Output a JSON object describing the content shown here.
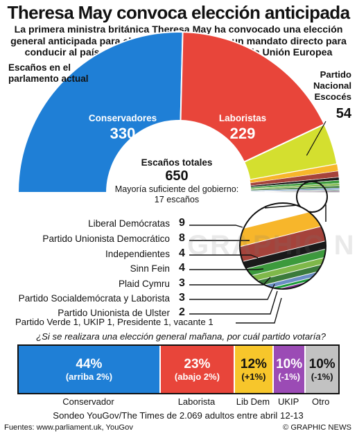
{
  "title": "Theresa May convoca elección anticipada",
  "subtitle": "La primera ministra británica Theresa May ha convocado una elección general anticipada para el 8 de junio buscando un mandato directo para conducir al país durante el Brexit, el divorcio de la Unión Europea",
  "current_label": "Escaños en el parlamento actual",
  "total": {
    "label": "Escaños totales",
    "value": "650",
    "majority": "Mayoría suficiente del gobierno: 17 escaños"
  },
  "big_parties": {
    "con": {
      "name": "Conservadores",
      "seats": "330"
    },
    "lab": {
      "name": "Laboristas",
      "seats": "229"
    },
    "snp": {
      "name": "Partido Nacional Escocés",
      "seats": "54"
    }
  },
  "small_parties": [
    {
      "name": "Liberal Demócratas",
      "seats": "9"
    },
    {
      "name": "Partido Unionista Democrático",
      "seats": "8"
    },
    {
      "name": "Independientes",
      "seats": "4"
    },
    {
      "name": "Sinn Fein",
      "seats": "4"
    },
    {
      "name": "Plaid Cymru",
      "seats": "3"
    },
    {
      "name": "Partido Socialdemócrata y Laborista",
      "seats": "3"
    },
    {
      "name": "Partido Unionista de Ulster",
      "seats": "2"
    }
  ],
  "others_line": "Partido Verde 1, UKIP 1, Presidente 1, vacante 1",
  "poll": {
    "question": "¿Si se realizara una elección general mañana, por cuál partido votaría?",
    "items": [
      {
        "name": "Conservador",
        "pct": "44%",
        "chg": "(arriba 2%)"
      },
      {
        "name": "Laborista",
        "pct": "23%",
        "chg": "(abajo 2%)"
      },
      {
        "name": "Lib Dem",
        "pct": "12%",
        "chg": "(+1%)"
      },
      {
        "name": "UKIP",
        "pct": "10%",
        "chg": "(-1%)"
      },
      {
        "name": "Otro",
        "pct": "10%",
        "chg": "(-1%)"
      }
    ]
  },
  "source": "Sondeo YouGov/The Times de 2.069 adultos entre abril 12-13",
  "credits": "Fuentes: www.parliament.uk, YouGov",
  "copyright": "© GRAPHIC NEWS",
  "watermark": "GRAPHIC NEWS",
  "chart_data": [
    {
      "type": "pie",
      "title": "Escaños en el parlamento actual",
      "total": 650,
      "categories": [
        "Conservadores",
        "Laboristas",
        "Partido Nacional Escocés",
        "Liberal Demócratas",
        "Partido Unionista Democrático",
        "Independientes",
        "Sinn Fein",
        "Plaid Cymru",
        "Partido Socialdemócrata y Laborista",
        "Partido Unionista de Ulster",
        "Partido Verde",
        "UKIP",
        "Presidente",
        "vacante"
      ],
      "values": [
        330,
        229,
        54,
        9,
        8,
        4,
        4,
        3,
        3,
        2,
        1,
        1,
        1,
        1
      ],
      "colors": [
        "#1f7fd6",
        "#e8453a",
        "#d4df2f",
        "#f7b62b",
        "#a5433b",
        "#1a1a1a",
        "#3c9a3c",
        "#7fb84a",
        "#3b7b3b",
        "#6a8ec4",
        "#1d9b3a",
        "#7a2f8a",
        "#333333",
        "#bbbbbb"
      ]
    },
    {
      "type": "bar",
      "title": "¿Si se realizara una elección general mañana, por cuál partido votaría?",
      "categories": [
        "Conservador",
        "Laborista",
        "Lib Dem",
        "UKIP",
        "Otro"
      ],
      "values": [
        44,
        23,
        12,
        10,
        10
      ],
      "change": [
        2,
        -2,
        1,
        -1,
        -1
      ],
      "colors": [
        "#1f7fd6",
        "#e8453a",
        "#f7c62b",
        "#9b4bb5",
        "#c2c2c2"
      ]
    }
  ]
}
